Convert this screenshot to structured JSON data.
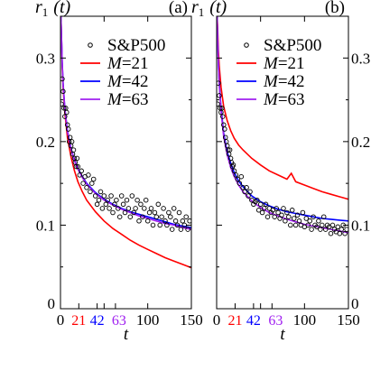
{
  "chart_data": [
    {
      "panel_label": "(a)",
      "type": "line",
      "ylabel_main": "r",
      "ylabel_sub": "1",
      "ylabel_arg": "(t)",
      "xlabel": "t",
      "xlim": [
        0,
        150
      ],
      "ylim": [
        0,
        0.35
      ],
      "x_ticks": [
        "0",
        "100",
        "150"
      ],
      "x_marker_ticks": [
        {
          "label": "21",
          "value": 21,
          "color": "#ff0000"
        },
        {
          "label": "42",
          "value": 42,
          "color": "#0000ff"
        },
        {
          "label": "63",
          "value": 63,
          "color": "#a020f0"
        }
      ],
      "y_ticks": [
        "0",
        "0.1",
        "0.2",
        "0.3"
      ],
      "legend": [
        {
          "label": "S&P500",
          "kind": "marker",
          "color": "#000000"
        },
        {
          "label": "M=21",
          "kind": "line",
          "color": "#ff0000"
        },
        {
          "label": "M=42",
          "kind": "line",
          "color": "#0000ff"
        },
        {
          "label": "M=63",
          "kind": "line",
          "color": "#a020f0"
        }
      ],
      "scatter": {
        "x": [
          1,
          2,
          3,
          4,
          5,
          6,
          7,
          8,
          9,
          10,
          11,
          12,
          13,
          14,
          15,
          16,
          17,
          18,
          19,
          20,
          22,
          24,
          26,
          28,
          30,
          32,
          34,
          36,
          38,
          40,
          42,
          44,
          46,
          48,
          50,
          52,
          54,
          56,
          58,
          60,
          62,
          64,
          66,
          68,
          70,
          72,
          74,
          76,
          78,
          80,
          82,
          84,
          86,
          88,
          90,
          92,
          94,
          96,
          98,
          100,
          102,
          104,
          106,
          108,
          110,
          112,
          114,
          116,
          118,
          120,
          122,
          124,
          126,
          128,
          130,
          132,
          134,
          136,
          138,
          140,
          142,
          144,
          146,
          148
        ],
        "y": [
          0.245,
          0.275,
          0.26,
          0.24,
          0.23,
          0.24,
          0.235,
          0.22,
          0.215,
          0.2,
          0.205,
          0.195,
          0.2,
          0.185,
          0.19,
          0.18,
          0.175,
          0.17,
          0.18,
          0.17,
          0.16,
          0.165,
          0.15,
          0.158,
          0.145,
          0.16,
          0.14,
          0.15,
          0.155,
          0.135,
          0.125,
          0.13,
          0.14,
          0.12,
          0.135,
          0.125,
          0.13,
          0.12,
          0.135,
          0.115,
          0.125,
          0.13,
          0.12,
          0.11,
          0.135,
          0.125,
          0.115,
          0.13,
          0.12,
          0.11,
          0.135,
          0.115,
          0.12,
          0.13,
          0.105,
          0.125,
          0.11,
          0.12,
          0.13,
          0.105,
          0.115,
          0.12,
          0.1,
          0.115,
          0.11,
          0.125,
          0.1,
          0.11,
          0.12,
          0.105,
          0.1,
          0.115,
          0.11,
          0.095,
          0.12,
          0.105,
          0.1,
          0.115,
          0.095,
          0.105,
          0.1,
          0.11,
          0.095,
          0.105
        ]
      },
      "series": [
        {
          "name": "M=21",
          "color": "#ff0000",
          "x": [
            0.5,
            1,
            2,
            3,
            5,
            8,
            12,
            16,
            20,
            25,
            30,
            40,
            50,
            60,
            70,
            80,
            90,
            100,
            110,
            120,
            130,
            140,
            150
          ],
          "y": [
            0.35,
            0.33,
            0.29,
            0.265,
            0.235,
            0.205,
            0.182,
            0.165,
            0.152,
            0.14,
            0.13,
            0.116,
            0.105,
            0.096,
            0.089,
            0.082,
            0.076,
            0.071,
            0.066,
            0.061,
            0.057,
            0.053,
            0.049
          ]
        },
        {
          "name": "M=42",
          "color": "#0000ff",
          "x": [
            0.5,
            1,
            2,
            3,
            5,
            8,
            12,
            16,
            20,
            25,
            30,
            40,
            50,
            60,
            70,
            80,
            90,
            100,
            110,
            120,
            130,
            140,
            150
          ],
          "y": [
            0.35,
            0.33,
            0.295,
            0.27,
            0.24,
            0.213,
            0.192,
            0.178,
            0.168,
            0.158,
            0.15,
            0.139,
            0.131,
            0.125,
            0.12,
            0.116,
            0.113,
            0.11,
            0.107,
            0.104,
            0.101,
            0.099,
            0.097
          ]
        },
        {
          "name": "M=63",
          "color": "#a020f0",
          "x": [
            0.5,
            1,
            2,
            3,
            5,
            8,
            12,
            16,
            20,
            25,
            30,
            40,
            50,
            60,
            70,
            80,
            90,
            100,
            110,
            120,
            130,
            140,
            150
          ],
          "y": [
            0.35,
            0.33,
            0.294,
            0.269,
            0.239,
            0.212,
            0.191,
            0.177,
            0.167,
            0.157,
            0.149,
            0.138,
            0.13,
            0.124,
            0.119,
            0.115,
            0.111,
            0.108,
            0.105,
            0.102,
            0.1,
            0.097,
            0.095
          ]
        }
      ]
    },
    {
      "panel_label": "(b)",
      "type": "line",
      "ylabel_main": "r",
      "ylabel_sub": "1",
      "ylabel_arg": "(t)",
      "xlabel": "t",
      "xlim": [
        0,
        150
      ],
      "ylim": [
        0,
        0.35
      ],
      "x_ticks": [
        "0",
        "100",
        "150"
      ],
      "x_marker_ticks": [
        {
          "label": "21",
          "value": 21,
          "color": "#ff0000"
        },
        {
          "label": "42",
          "value": 42,
          "color": "#0000ff"
        },
        {
          "label": "63",
          "value": 63,
          "color": "#a020f0"
        }
      ],
      "y_ticks": [
        "0",
        "0.1",
        "0.2",
        "0.3"
      ],
      "legend": [
        {
          "label": "S&P500",
          "kind": "marker",
          "color": "#000000"
        },
        {
          "label": "M=21",
          "kind": "line",
          "color": "#ff0000"
        },
        {
          "label": "M=42",
          "kind": "line",
          "color": "#0000ff"
        },
        {
          "label": "M=63",
          "kind": "line",
          "color": "#a020f0"
        }
      ],
      "scatter": {
        "x": [
          1,
          2,
          3,
          4,
          5,
          6,
          7,
          8,
          9,
          10,
          11,
          12,
          13,
          14,
          15,
          16,
          17,
          18,
          19,
          20,
          22,
          24,
          26,
          28,
          30,
          32,
          34,
          36,
          38,
          40,
          42,
          44,
          46,
          48,
          50,
          52,
          54,
          56,
          58,
          60,
          62,
          64,
          66,
          68,
          70,
          72,
          74,
          76,
          78,
          80,
          82,
          84,
          86,
          88,
          90,
          92,
          94,
          96,
          98,
          100,
          102,
          104,
          106,
          108,
          110,
          112,
          114,
          116,
          118,
          120,
          122,
          124,
          126,
          128,
          130,
          132,
          134,
          136,
          138,
          140,
          142,
          144,
          146,
          148
        ],
        "y": [
          0.245,
          0.27,
          0.255,
          0.24,
          0.235,
          0.24,
          0.23,
          0.22,
          0.215,
          0.205,
          0.2,
          0.195,
          0.19,
          0.185,
          0.19,
          0.18,
          0.175,
          0.17,
          0.172,
          0.165,
          0.16,
          0.155,
          0.15,
          0.158,
          0.145,
          0.14,
          0.145,
          0.135,
          0.14,
          0.13,
          0.125,
          0.128,
          0.13,
          0.118,
          0.125,
          0.115,
          0.12,
          0.125,
          0.11,
          0.12,
          0.115,
          0.118,
          0.11,
          0.12,
          0.115,
          0.108,
          0.112,
          0.12,
          0.105,
          0.115,
          0.11,
          0.1,
          0.118,
          0.108,
          0.1,
          0.112,
          0.105,
          0.1,
          0.115,
          0.098,
          0.108,
          0.1,
          0.105,
          0.095,
          0.11,
          0.1,
          0.098,
          0.105,
          0.095,
          0.1,
          0.11,
          0.095,
          0.1,
          0.098,
          0.09,
          0.1,
          0.095,
          0.092,
          0.098,
          0.09,
          0.095,
          0.1,
          0.09,
          0.095
        ]
      },
      "series": [
        {
          "name": "M=21",
          "color": "#ff0000",
          "x": [
            0.5,
            1,
            2,
            3,
            5,
            8,
            12,
            16,
            20,
            25,
            30,
            40,
            50,
            60,
            70,
            80,
            85,
            90,
            100,
            110,
            120,
            130,
            140,
            150
          ],
          "y": [
            0.35,
            0.34,
            0.31,
            0.29,
            0.265,
            0.242,
            0.225,
            0.213,
            0.204,
            0.196,
            0.19,
            0.18,
            0.172,
            0.165,
            0.16,
            0.155,
            0.162,
            0.152,
            0.148,
            0.144,
            0.14,
            0.137,
            0.134,
            0.131
          ]
        },
        {
          "name": "M=42",
          "color": "#0000ff",
          "x": [
            0.5,
            1,
            2,
            3,
            5,
            8,
            12,
            16,
            20,
            25,
            30,
            40,
            50,
            60,
            70,
            80,
            90,
            100,
            110,
            120,
            130,
            140,
            150
          ],
          "y": [
            0.35,
            0.33,
            0.294,
            0.27,
            0.24,
            0.21,
            0.188,
            0.174,
            0.163,
            0.153,
            0.146,
            0.135,
            0.128,
            0.123,
            0.119,
            0.116,
            0.114,
            0.112,
            0.11,
            0.108,
            0.107,
            0.106,
            0.105
          ]
        },
        {
          "name": "M=63",
          "color": "#a020f0",
          "x": [
            0.5,
            1,
            2,
            3,
            5,
            8,
            12,
            16,
            20,
            25,
            30,
            40,
            50,
            60,
            70,
            80,
            90,
            100,
            110,
            120,
            130,
            140,
            150
          ],
          "y": [
            0.35,
            0.33,
            0.292,
            0.268,
            0.236,
            0.206,
            0.184,
            0.169,
            0.158,
            0.148,
            0.14,
            0.129,
            0.121,
            0.115,
            0.111,
            0.107,
            0.104,
            0.101,
            0.099,
            0.097,
            0.095,
            0.093,
            0.091
          ]
        }
      ]
    }
  ]
}
